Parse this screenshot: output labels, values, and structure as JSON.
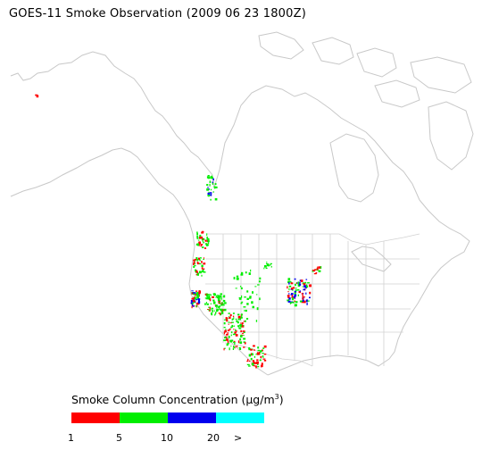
{
  "title": "GOES-11 Smoke Observation (2009 06 23  1800Z)",
  "legend": {
    "title_prefix": "Smoke Column Concentration (",
    "unit_mu": "μ",
    "unit_rest": "g/m",
    "unit_sup": "3",
    "title_suffix": ")",
    "colors": [
      "#ff0000",
      "#00ee00",
      "#0000ee",
      "#00ffff"
    ],
    "ticks": [
      "1",
      "5",
      "10",
      "20",
      ">"
    ]
  },
  "colors": {
    "coastline": "#c8c8c8",
    "border": "#d2d2d2",
    "background": "#ffffff"
  }
}
